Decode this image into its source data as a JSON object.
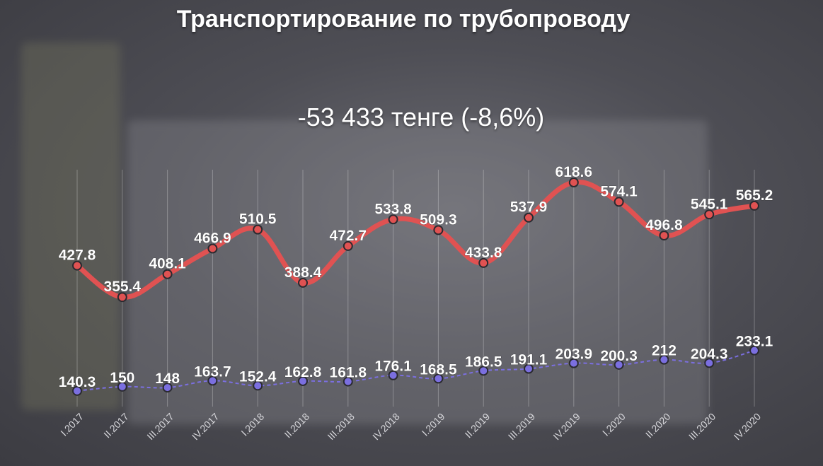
{
  "chart_data": {
    "type": "line",
    "title": "Транспортирование по трубопроводу",
    "subtitle": "-53 433 тенге (-8,6%)",
    "categories": [
      "I.2017",
      "II.2017",
      "III.2017",
      "IV.2017",
      "I.2018",
      "II.2018",
      "III.2018",
      "IV.2018",
      "I.2019",
      "II.2019",
      "III.2019",
      "IV.2019",
      "I.2020",
      "II.2020",
      "III.2020",
      "IV.2020"
    ],
    "series": [
      {
        "color": "#e05252",
        "style": "solid",
        "labels": [
          "427.8",
          "355.4",
          "408.1",
          "466.9",
          "510.5",
          "388.4",
          "472.7",
          "533.8",
          "509.3",
          "433.8",
          "537.9",
          "618.6",
          "574.1",
          "496.8",
          "545.1",
          "565.2"
        ],
        "values": [
          427.8,
          355.4,
          408.1,
          466.9,
          510.5,
          388.4,
          472.7,
          533.8,
          509.3,
          433.8,
          537.9,
          618.6,
          574.1,
          496.8,
          545.1,
          565.2
        ]
      },
      {
        "color": "#7b6fe0",
        "style": "dashed",
        "labels": [
          "140.3",
          "150",
          "148",
          "163.7",
          "152.4",
          "162.8",
          "161.8",
          "176.1",
          "168.5",
          "186.5",
          "191.1",
          "203.9",
          "200.3",
          "212",
          "204.3",
          "233.1"
        ],
        "values": [
          140.3,
          150,
          148,
          163.7,
          152.4,
          162.8,
          161.8,
          176.1,
          168.5,
          186.5,
          191.1,
          203.9,
          200.3,
          212,
          204.3,
          233.1
        ]
      }
    ],
    "ylim": [
      0,
      700
    ],
    "grid": "vertical",
    "legend": "none"
  }
}
